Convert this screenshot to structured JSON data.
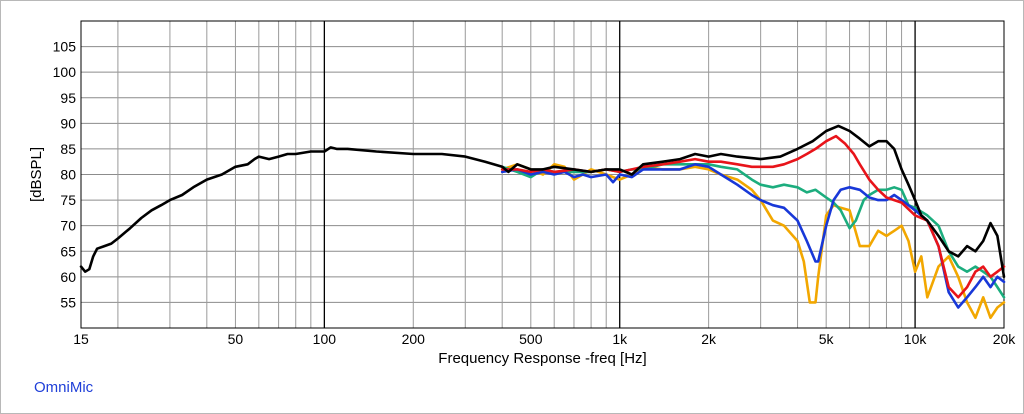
{
  "chart_data": {
    "type": "line",
    "title": "",
    "xlabel": "Frequency Response -freq [Hz]",
    "ylabel": "[dBSPL]",
    "xscale": "log",
    "xlim": [
      15,
      20000
    ],
    "ylim": [
      50,
      110
    ],
    "grid": true,
    "x_ticks": [
      {
        "v": 15,
        "label": "15"
      },
      {
        "v": 50,
        "label": "50"
      },
      {
        "v": 100,
        "label": "100"
      },
      {
        "v": 200,
        "label": "200"
      },
      {
        "v": 500,
        "label": "500"
      },
      {
        "v": 1000,
        "label": "1k"
      },
      {
        "v": 2000,
        "label": "2k"
      },
      {
        "v": 5000,
        "label": "5k"
      },
      {
        "v": 10000,
        "label": "10k"
      },
      {
        "v": 20000,
        "label": "20k"
      }
    ],
    "y_ticks": [
      55,
      60,
      65,
      70,
      75,
      80,
      85,
      90,
      95,
      100,
      105
    ],
    "series": [
      {
        "color": "#f2a700",
        "points": [
          [
            400,
            81
          ],
          [
            450,
            82
          ],
          [
            500,
            81
          ],
          [
            550,
            80
          ],
          [
            600,
            82
          ],
          [
            650,
            81.5
          ],
          [
            700,
            79
          ],
          [
            750,
            80
          ],
          [
            800,
            81
          ],
          [
            900,
            80
          ],
          [
            1000,
            79
          ],
          [
            1100,
            80
          ],
          [
            1200,
            81.5
          ],
          [
            1400,
            81
          ],
          [
            1600,
            81
          ],
          [
            1800,
            81.5
          ],
          [
            2000,
            81
          ],
          [
            2200,
            80
          ],
          [
            2500,
            79
          ],
          [
            2800,
            77
          ],
          [
            3000,
            75
          ],
          [
            3300,
            71
          ],
          [
            3600,
            70
          ],
          [
            4000,
            67
          ],
          [
            4200,
            63
          ],
          [
            4400,
            55
          ],
          [
            4600,
            55
          ],
          [
            4700,
            60
          ],
          [
            5000,
            72
          ],
          [
            5300,
            74
          ],
          [
            5600,
            73.5
          ],
          [
            6000,
            73
          ],
          [
            6500,
            66
          ],
          [
            7000,
            66
          ],
          [
            7500,
            69
          ],
          [
            8000,
            68
          ],
          [
            8500,
            69
          ],
          [
            9000,
            70
          ],
          [
            9500,
            67
          ],
          [
            10000,
            61
          ],
          [
            10500,
            64
          ],
          [
            11000,
            56
          ],
          [
            12000,
            62
          ],
          [
            13000,
            64
          ],
          [
            14000,
            60
          ],
          [
            15000,
            55
          ],
          [
            16000,
            52
          ],
          [
            17000,
            56
          ],
          [
            18000,
            52
          ],
          [
            19000,
            54
          ],
          [
            20000,
            55
          ]
        ]
      },
      {
        "color": "#1cad7e",
        "points": [
          [
            400,
            81.5
          ],
          [
            450,
            80.5
          ],
          [
            500,
            79.5
          ],
          [
            550,
            81
          ],
          [
            600,
            80.5
          ],
          [
            700,
            80.5
          ],
          [
            800,
            80.5
          ],
          [
            900,
            81
          ],
          [
            1000,
            80.5
          ],
          [
            1100,
            81
          ],
          [
            1200,
            81
          ],
          [
            1400,
            82
          ],
          [
            1600,
            82
          ],
          [
            1800,
            82
          ],
          [
            2000,
            82
          ],
          [
            2200,
            81.5
          ],
          [
            2500,
            81
          ],
          [
            2800,
            79
          ],
          [
            3000,
            78
          ],
          [
            3300,
            77.5
          ],
          [
            3600,
            78
          ],
          [
            4000,
            77.5
          ],
          [
            4300,
            76.5
          ],
          [
            4600,
            77
          ],
          [
            5000,
            75.5
          ],
          [
            5300,
            74.5
          ],
          [
            5600,
            73
          ],
          [
            6000,
            69.5
          ],
          [
            6300,
            71
          ],
          [
            6700,
            75
          ],
          [
            7000,
            76
          ],
          [
            7500,
            77
          ],
          [
            8000,
            77
          ],
          [
            8500,
            77.5
          ],
          [
            9000,
            77
          ],
          [
            9500,
            74
          ],
          [
            10000,
            73.5
          ],
          [
            11000,
            72
          ],
          [
            12000,
            70
          ],
          [
            13000,
            65
          ],
          [
            14000,
            62
          ],
          [
            15000,
            61
          ],
          [
            16000,
            62
          ],
          [
            17000,
            61
          ],
          [
            18000,
            60
          ],
          [
            19000,
            58
          ],
          [
            20000,
            56
          ]
        ]
      },
      {
        "color": "#1838d8",
        "points": [
          [
            400,
            80.5
          ],
          [
            450,
            81
          ],
          [
            500,
            80
          ],
          [
            550,
            80.5
          ],
          [
            600,
            80
          ],
          [
            650,
            80.5
          ],
          [
            700,
            79.5
          ],
          [
            750,
            80
          ],
          [
            800,
            79.5
          ],
          [
            900,
            80
          ],
          [
            950,
            78.5
          ],
          [
            1000,
            80
          ],
          [
            1100,
            79.5
          ],
          [
            1200,
            81
          ],
          [
            1400,
            81
          ],
          [
            1600,
            81
          ],
          [
            1800,
            82
          ],
          [
            2000,
            81.5
          ],
          [
            2200,
            80
          ],
          [
            2500,
            78
          ],
          [
            2800,
            76
          ],
          [
            3000,
            75
          ],
          [
            3300,
            74
          ],
          [
            3600,
            73.5
          ],
          [
            4000,
            71
          ],
          [
            4300,
            67
          ],
          [
            4600,
            63
          ],
          [
            4700,
            63
          ],
          [
            5000,
            70
          ],
          [
            5300,
            75
          ],
          [
            5600,
            77
          ],
          [
            6000,
            77.5
          ],
          [
            6500,
            77
          ],
          [
            7000,
            75.5
          ],
          [
            7500,
            75
          ],
          [
            8000,
            75
          ],
          [
            8500,
            76
          ],
          [
            9000,
            75
          ],
          [
            10000,
            73
          ],
          [
            11000,
            71
          ],
          [
            12000,
            66
          ],
          [
            13000,
            57
          ],
          [
            14000,
            54
          ],
          [
            15000,
            56
          ],
          [
            16000,
            58
          ],
          [
            17000,
            60
          ],
          [
            18000,
            58
          ],
          [
            19000,
            60
          ],
          [
            20000,
            59
          ]
        ]
      },
      {
        "color": "#e8141a",
        "points": [
          [
            400,
            81
          ],
          [
            450,
            81
          ],
          [
            500,
            80.5
          ],
          [
            550,
            81
          ],
          [
            600,
            80.5
          ],
          [
            700,
            81
          ],
          [
            800,
            80.5
          ],
          [
            900,
            81
          ],
          [
            1000,
            80.5
          ],
          [
            1100,
            81
          ],
          [
            1200,
            81.5
          ],
          [
            1400,
            82
          ],
          [
            1600,
            82.5
          ],
          [
            1800,
            83
          ],
          [
            2000,
            82.5
          ],
          [
            2200,
            82.5
          ],
          [
            2500,
            82
          ],
          [
            2800,
            81.5
          ],
          [
            3000,
            81.5
          ],
          [
            3300,
            81.5
          ],
          [
            3600,
            82
          ],
          [
            4000,
            83
          ],
          [
            4300,
            84
          ],
          [
            4600,
            85
          ],
          [
            5000,
            86.5
          ],
          [
            5400,
            87.5
          ],
          [
            5800,
            86
          ],
          [
            6200,
            84
          ],
          [
            6500,
            82
          ],
          [
            7000,
            79
          ],
          [
            7500,
            77
          ],
          [
            8000,
            75.5
          ],
          [
            8500,
            75
          ],
          [
            9000,
            74.5
          ],
          [
            10000,
            72
          ],
          [
            11000,
            71
          ],
          [
            12000,
            66
          ],
          [
            13000,
            58
          ],
          [
            14000,
            56
          ],
          [
            15000,
            58
          ],
          [
            16000,
            61
          ],
          [
            17000,
            62
          ],
          [
            18000,
            60
          ],
          [
            19000,
            61
          ],
          [
            20000,
            62
          ]
        ]
      },
      {
        "color": "#000000",
        "points": [
          [
            15,
            62
          ],
          [
            15.5,
            61
          ],
          [
            16,
            61.5
          ],
          [
            16.5,
            64
          ],
          [
            17,
            65.5
          ],
          [
            18,
            66
          ],
          [
            19,
            66.5
          ],
          [
            20,
            67.5
          ],
          [
            22,
            69.5
          ],
          [
            24,
            71.5
          ],
          [
            26,
            73
          ],
          [
            28,
            74
          ],
          [
            30,
            75
          ],
          [
            33,
            76
          ],
          [
            36,
            77.5
          ],
          [
            40,
            79
          ],
          [
            45,
            80
          ],
          [
            50,
            81.5
          ],
          [
            55,
            82
          ],
          [
            58,
            83
          ],
          [
            60,
            83.5
          ],
          [
            65,
            83
          ],
          [
            70,
            83.5
          ],
          [
            75,
            84
          ],
          [
            80,
            84
          ],
          [
            90,
            84.5
          ],
          [
            100,
            84.5
          ],
          [
            105,
            85.3
          ],
          [
            110,
            85
          ],
          [
            120,
            85
          ],
          [
            150,
            84.5
          ],
          [
            200,
            84
          ],
          [
            250,
            84
          ],
          [
            300,
            83.5
          ],
          [
            350,
            82.5
          ],
          [
            400,
            81.5
          ],
          [
            420,
            80.5
          ],
          [
            450,
            82
          ],
          [
            500,
            81
          ],
          [
            550,
            81
          ],
          [
            600,
            81.5
          ],
          [
            700,
            81
          ],
          [
            800,
            80.5
          ],
          [
            900,
            81
          ],
          [
            1000,
            81
          ],
          [
            1100,
            80
          ],
          [
            1200,
            82
          ],
          [
            1400,
            82.5
          ],
          [
            1600,
            83
          ],
          [
            1800,
            84
          ],
          [
            2000,
            83.5
          ],
          [
            2200,
            84
          ],
          [
            2500,
            83.5
          ],
          [
            3000,
            83
          ],
          [
            3500,
            83.5
          ],
          [
            4000,
            85
          ],
          [
            4500,
            86.5
          ],
          [
            5000,
            88.5
          ],
          [
            5500,
            89.5
          ],
          [
            6000,
            88.5
          ],
          [
            6500,
            87
          ],
          [
            7000,
            85.5
          ],
          [
            7500,
            86.5
          ],
          [
            8000,
            86.5
          ],
          [
            8500,
            85
          ],
          [
            9000,
            81
          ],
          [
            9500,
            78
          ],
          [
            10000,
            75
          ],
          [
            10500,
            72
          ],
          [
            11000,
            71
          ],
          [
            12000,
            68
          ],
          [
            13000,
            65
          ],
          [
            14000,
            64
          ],
          [
            15000,
            66
          ],
          [
            16000,
            65
          ],
          [
            17000,
            67
          ],
          [
            18000,
            70.5
          ],
          [
            19000,
            68
          ],
          [
            20000,
            60
          ]
        ]
      }
    ]
  },
  "footer": {
    "brand": "OmniMic"
  }
}
